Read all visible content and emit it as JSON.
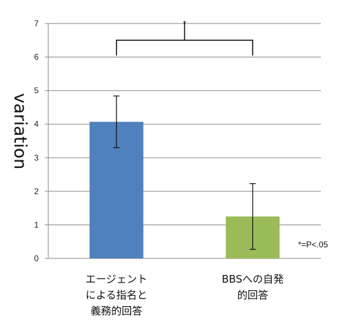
{
  "chart_data": {
    "type": "bar",
    "title": "",
    "xlabel": "",
    "ylabel": "variation",
    "ylim": [
      0,
      7
    ],
    "yticks": [
      "0",
      "1",
      "2",
      "3",
      "4",
      "5",
      "6",
      "7"
    ],
    "grid": true,
    "categories": [
      [
        "エージェント",
        "による指名と",
        "義務的回答"
      ],
      [
        "BBSへの自発",
        "的回答"
      ]
    ],
    "values": [
      4.07,
      1.25
    ],
    "error": [
      0.77,
      0.98
    ],
    "colors": [
      "#4F81BD",
      "#9BBB59"
    ],
    "significance": {
      "marker": "*",
      "level": "6.5",
      "note": "*=P<.05"
    }
  }
}
